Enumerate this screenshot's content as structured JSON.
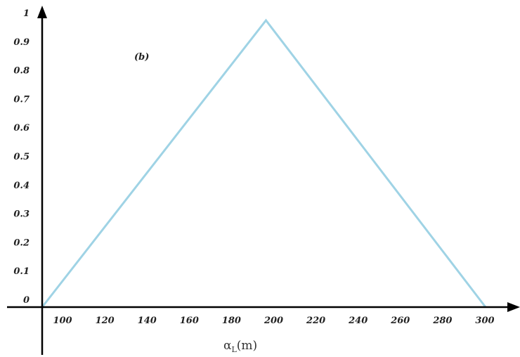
{
  "chart_data": {
    "type": "line",
    "xlabel": "αL(m)",
    "xlabel_main": "α",
    "xlabel_sub": "L",
    "xlabel_unit": "(m)",
    "annotation": "(b)",
    "xlim": [
      90,
      305
    ],
    "ylim": [
      0,
      1.05
    ],
    "x_ticks": [
      "100",
      "120",
      "140",
      "160",
      "180",
      "200",
      "220",
      "240",
      "260",
      "280",
      "300"
    ],
    "y_ticks": [
      "0",
      "0.1",
      "0.2",
      "0.3",
      "0.4",
      "0.5",
      "0.6",
      "0.7",
      "0.8",
      "0.9",
      "1"
    ],
    "grid": false,
    "series": [
      {
        "x": [
          90,
          196,
          300
        ],
        "y": [
          0,
          1,
          0
        ],
        "color": "#9fd3e5"
      }
    ]
  }
}
